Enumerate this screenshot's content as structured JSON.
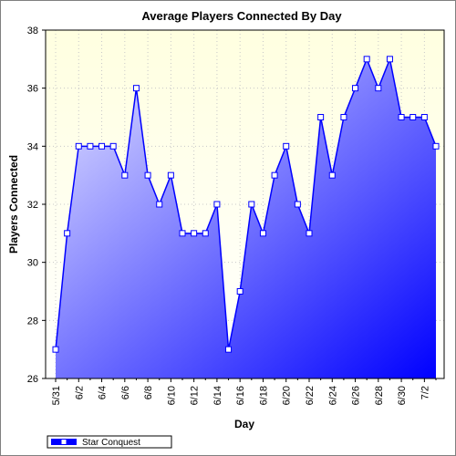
{
  "chart_data": {
    "type": "area",
    "title": "Average Players Connected By Day",
    "xlabel": "Day",
    "ylabel": "Players Connected",
    "ylim": [
      26,
      38
    ],
    "yticks": [
      26,
      28,
      30,
      32,
      34,
      36,
      38
    ],
    "x": [
      "5/31",
      "6/1",
      "6/2",
      "6/3",
      "6/4",
      "6/5",
      "6/6",
      "6/7",
      "6/8",
      "6/9",
      "6/10",
      "6/11",
      "6/12",
      "6/13",
      "6/14",
      "6/15",
      "6/16",
      "6/17",
      "6/18",
      "6/19",
      "6/20",
      "6/21",
      "6/22",
      "6/23",
      "6/24",
      "6/25",
      "6/26",
      "6/27",
      "6/28",
      "6/29",
      "6/30",
      "7/1",
      "7/2",
      "7/3"
    ],
    "tick_labels": [
      "5/31",
      "6/2",
      "6/4",
      "6/6",
      "6/8",
      "6/10",
      "6/12",
      "6/14",
      "6/16",
      "6/18",
      "6/20",
      "6/22",
      "6/24",
      "6/26",
      "6/28",
      "6/30",
      "7/2"
    ],
    "series": [
      {
        "name": "Star Conquest",
        "color": "#0000ff",
        "values": [
          27,
          31,
          34,
          34,
          34,
          34,
          33,
          36,
          33,
          32,
          33,
          31,
          31,
          31,
          32,
          27,
          29,
          32,
          31,
          33,
          34,
          32,
          31,
          35,
          33,
          35,
          36,
          37,
          36,
          37,
          35,
          35,
          35,
          34
        ]
      }
    ],
    "grid": true,
    "legend": "bottom-left"
  },
  "colors": {
    "plot_background_top": "#ffffe0",
    "plot_background_bottom": "#ffffff",
    "area_gradient_light": "#e6e6ff",
    "area_gradient_dark": "#0000ff",
    "line": "#0000ff"
  }
}
